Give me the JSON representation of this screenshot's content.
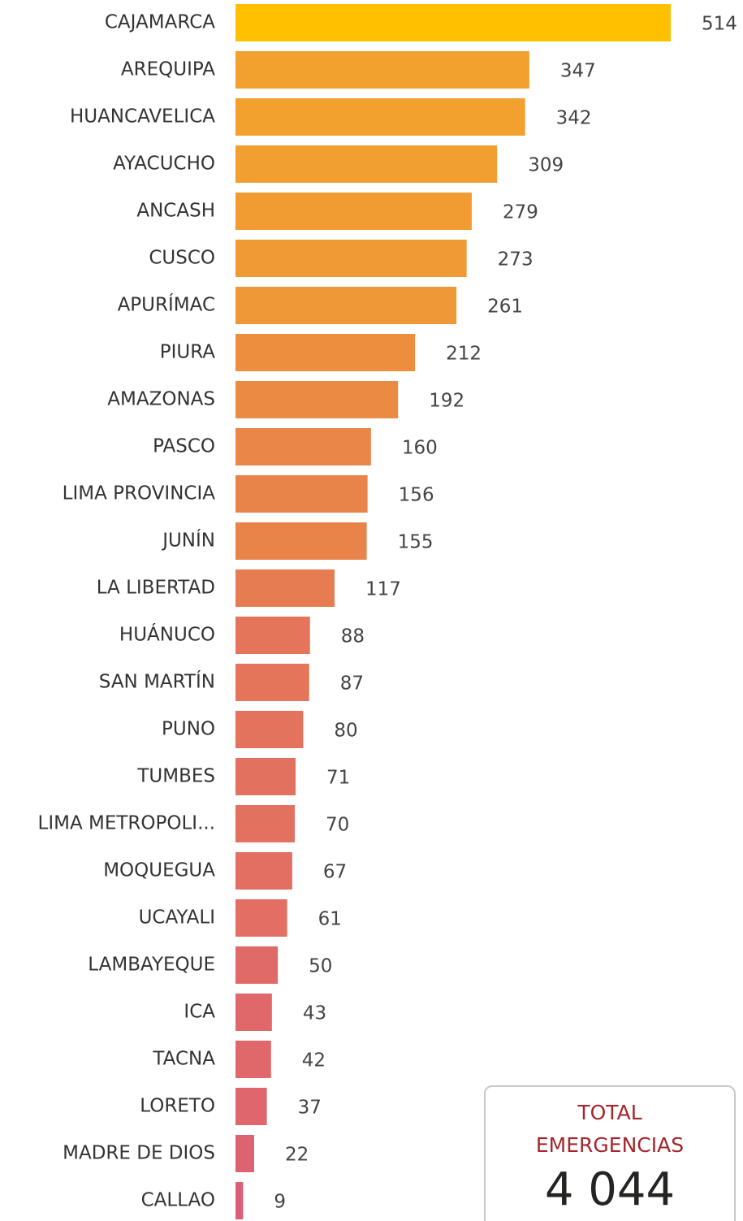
{
  "chart_data": {
    "type": "bar",
    "orientation": "horizontal",
    "categories": [
      "CAJAMARCA",
      "AREQUIPA",
      "HUANCAVELICA",
      "AYACUCHO",
      "ANCASH",
      "CUSCO",
      "APURÍMAC",
      "PIURA",
      "AMAZONAS",
      "PASCO",
      "LIMA PROVINCIA",
      "JUNÍN",
      "LA LIBERTAD",
      "HUÁNUCO",
      "SAN MARTÍN",
      "PUNO",
      "TUMBES",
      "LIMA METROPOLI...",
      "MOQUEGUA",
      "UCAYALI",
      "LAMBAYEQUE",
      "ICA",
      "TACNA",
      "LORETO",
      "MADRE DE DIOS",
      "CALLAO"
    ],
    "values": [
      514,
      347,
      342,
      309,
      279,
      273,
      261,
      212,
      192,
      160,
      156,
      155,
      117,
      88,
      87,
      80,
      71,
      70,
      67,
      61,
      50,
      43,
      42,
      37,
      22,
      9
    ],
    "colors": [
      "#FFC000",
      "#F2A02E",
      "#F2A02E",
      "#F19F30",
      "#F09C33",
      "#EF9A35",
      "#EE9837",
      "#EC8E3E",
      "#EB8A42",
      "#E98648",
      "#E8844A",
      "#E8844A",
      "#E67D52",
      "#E5755A",
      "#E5755A",
      "#E4735D",
      "#E37160",
      "#E37160",
      "#E26F62",
      "#E26E64",
      "#E06A68",
      "#E0686B",
      "#E0686B",
      "#DF666D",
      "#DD6373",
      "#DC5F78"
    ],
    "total": {
      "label": "TOTAL EMERGENCIAS",
      "value": 4044,
      "value_label": "4 044"
    }
  }
}
